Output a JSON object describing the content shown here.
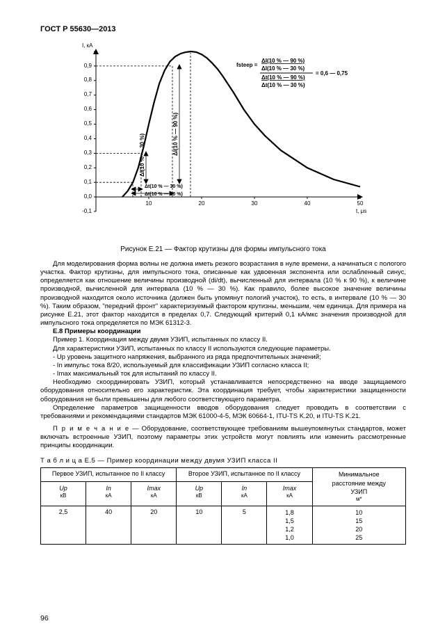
{
  "doc_header": "ГОСТ Р 55630—2013",
  "page_number": "96",
  "chart": {
    "type": "line",
    "y_label": "I, кА",
    "x_label": "t, μs",
    "xlim": [
      0,
      50
    ],
    "ylim": [
      -0.1,
      1.0
    ],
    "xticks": [
      0,
      10,
      20,
      30,
      40,
      50
    ],
    "yticks": [
      -0.1,
      0,
      0.1,
      0.2,
      0.3,
      0.4,
      0.5,
      0.6,
      0.7,
      0.8,
      0.9,
      1.0
    ],
    "background_color": "#ffffff",
    "axis_color": "#000000",
    "curve_color": "#000000",
    "curve_width": 2.2,
    "dashed_color": "#000000",
    "wave_points": [
      [
        5,
        0
      ],
      [
        6,
        0.04
      ],
      [
        7,
        0.1
      ],
      [
        8,
        0.2
      ],
      [
        9,
        0.34
      ],
      [
        10,
        0.5
      ],
      [
        11,
        0.65
      ],
      [
        12,
        0.78
      ],
      [
        13,
        0.87
      ],
      [
        14,
        0.93
      ],
      [
        15,
        0.965
      ],
      [
        16,
        0.985
      ],
      [
        17,
        0.995
      ],
      [
        18,
        1.0
      ],
      [
        19,
        0.995
      ],
      [
        20,
        0.98
      ],
      [
        21,
        0.955
      ],
      [
        22,
        0.92
      ],
      [
        23,
        0.88
      ],
      [
        24,
        0.83
      ],
      [
        26,
        0.72
      ],
      [
        28,
        0.6
      ],
      [
        30,
        0.5
      ],
      [
        32,
        0.42
      ],
      [
        35,
        0.32
      ],
      [
        40,
        0.2
      ],
      [
        45,
        0.12
      ],
      [
        50,
        0.07
      ]
    ],
    "annotations": {
      "v_dash_x": [
        9,
        18
      ],
      "h_dash_y_top": 0.9,
      "h_dash_y_bot": 0.1,
      "h_dash_y_mid": 0.3,
      "bottom_label_1": "Δt(10 % — 30 %)",
      "bottom_label_2": "Δt(10 % — 90 %)",
      "rot_label_1": "ΔI(10 % — 30 %)",
      "rot_label_2": "ΔI(10 % — 90 %)",
      "formula_top_1": "ΔI(10 % — 90 %)",
      "formula_top_2": "ΔI(10 % — 30 %)",
      "formula_bot_1": "Δt(10 % — 90 %)",
      "formula_bot_2": "Δt(10 % — 30 %)",
      "formula_lhs": "fsteep =",
      "formula_rhs": "= 0,6 — 0,75"
    },
    "caption": "Рисунок Е.21 — Фактор крутизны для формы импульсного тока"
  },
  "paragraphs": {
    "p1": "Для моделирования форма волны не должна иметь резкого возрастания в нуле времени, а начинаться с пологого участка. Фактор крутизны, для импульсного тока, описанные как удвоенная экспонента или ослабленный синус, определяется как отношение величины производной (di/dt), вычисленный для интервала (10 % к 90 %), к величине производной, вычисленной для интервала (10 % — 30 %). Как правило, более высокое значение величины производной находится около источника (должен быть упомянут пологий участок), то есть, в интервале (10 % — 30 %). Таким образом, \"передний фронт\" характеризуемый фактором крутизны, меньшим, чем единица. Для примера на рисунке Е.21, этот фактор находится в пределах 0,7. Следующий критерий 0,1 кА/мкс значения производной для импульсного тока определяется по  МЭК 61312-3.",
    "h_e8": "Е.8 Примеры координации",
    "p2": "Пример 1. Координация между двумя УЗИП, испытанных по классу II.",
    "p3": "Для характеристики УЗИП, испытанных по классу II используются следующие параметры.",
    "li1": "- Up уровень защитного напряжения, выбранного из ряда предпочтительных значений;",
    "li2": "- In импульс тока 8/20, используемый для классификации УЗИП согласно класса II;",
    "li3": "- Imax максимальный ток для испытаний по классу II.",
    "p4": "Необходимо скоординировать УЗИП, который устанавливается непосредственно на  вводе защищаемого оборудования  относительно его характеристик. Эта координация требует, чтобы характеристики защищенности оборудования не были превышены для любого соответствующего параметра.",
    "p5": "Определение параметров защищенности вводов оборудования следует проводить в соответствии с требованиями и рекомендациями стандартов МЭК 61000-4-5, МЭК 60664-1, ITU-TS K.20, и ITU-TS K.21.",
    "note_label": "П р и м е ч а н и е",
    "note_text": " — Оборудование, соответствующее требованиям вышеупомянутых стандартов, может включать встроенные УЗИП, поэтому параметры этих устройств могут повлиять или изменить рассмотренные принципы координации."
  },
  "table": {
    "caption": "Т а б л и ц а  Е.5 — Пример координации между двумя УЗИП класса II",
    "group1": "Первое УЗИП, испытанное по II классу",
    "group2": "Второе УЗИП, испытанное по II классу",
    "group3_a": "Минимальное",
    "group3_b": "расстояние между",
    "group3_c": "УЗИП",
    "group3_unit": "м*",
    "col_up": "Up",
    "col_up_unit": "кВ",
    "col_in": "In",
    "col_in_unit": "кА",
    "col_imax": "Imax",
    "col_imax_unit": "кА",
    "r1_up1": "2,5",
    "r1_in1": "40",
    "r1_imax1": "20",
    "r1_up2": "10",
    "r1_in2": "5",
    "r1_imax2_a": "1,8",
    "r1_imax2_b": "1,5",
    "r1_imax2_c": "1,2",
    "r1_imax2_d": "1,0",
    "r1_dist_a": "10",
    "r1_dist_b": "15",
    "r1_dist_c": "20",
    "r1_dist_d": "25"
  }
}
